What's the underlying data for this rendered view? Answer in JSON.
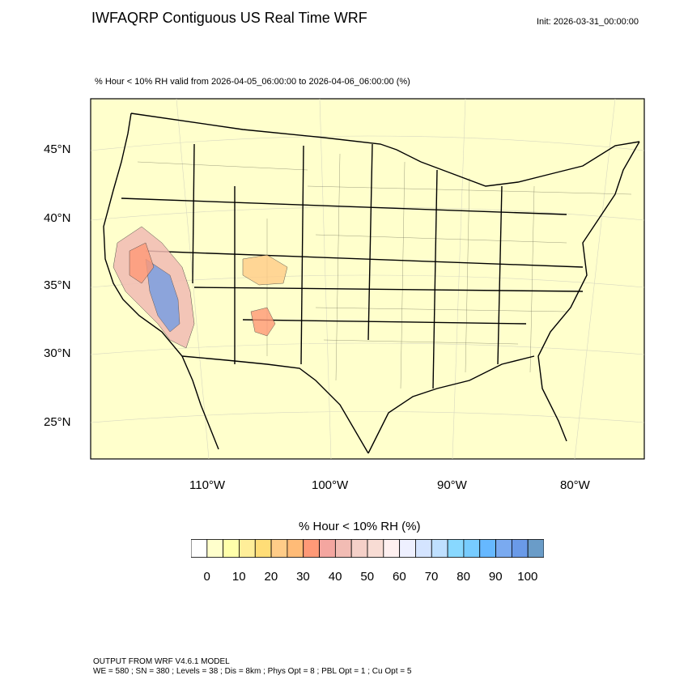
{
  "header": {
    "title": "IWFAQRP Contiguous US Real Time WRF",
    "init": "Init: 2026-03-31_00:00:00"
  },
  "plot": {
    "subtitle": "% Hour < 10% RH valid from 2026-04-05_06:00:00 to 2026-04-06_06:00:00   (%)",
    "background_color": "#ffffcc",
    "lat_labels": [
      "45°N",
      "40°N",
      "35°N",
      "30°N",
      "25°N"
    ],
    "lon_labels": [
      "110°W",
      "100°W",
      "90°W",
      "80°W"
    ]
  },
  "colorbar": {
    "title": "% Hour < 10% RH  (%)",
    "colors": [
      "#ffffff",
      "#ffffcc",
      "#ffffaa",
      "#ffee99",
      "#ffdd77",
      "#ffcc88",
      "#ffbb77",
      "#ff9977",
      "#f4a6a0",
      "#f2bcb4",
      "#f5d0c8",
      "#f8dcd4",
      "#fff0f0",
      "#eef0ff",
      "#d4e4ff",
      "#bfe0ff",
      "#88d8ff",
      "#77ccff",
      "#66b8ff",
      "#7aaaf0",
      "#6a9ae8",
      "#6a9cc8"
    ],
    "tick_labels": [
      "0",
      "10",
      "20",
      "30",
      "40",
      "50",
      "60",
      "70",
      "80",
      "90",
      "100"
    ]
  },
  "footer": {
    "line1": "OUTPUT FROM WRF V4.6.1 MODEL",
    "line2": "WE = 580 ; SN = 380 ; Levels = 38 ; Dis = 8km ; Phys Opt = 8 ; PBL Opt = 1 ; Cu Opt = 5"
  }
}
